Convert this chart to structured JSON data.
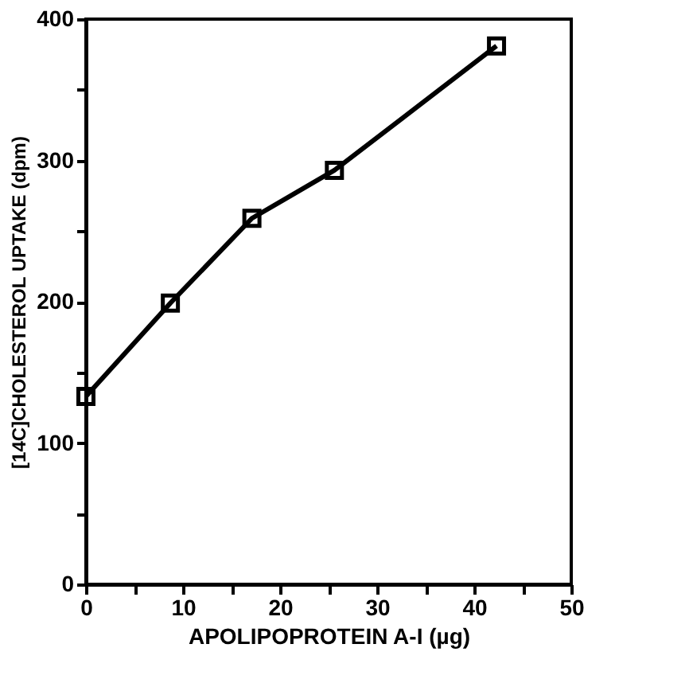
{
  "chart_data": {
    "type": "line",
    "xlabel": "APOLIPOPROTEIN A-I (µg)",
    "ylabel": "[14C]CHOLESTEROL UPTAKE (dpm)",
    "x": [
      0,
      8.7,
      17.1,
      25.6,
      42.3
    ],
    "series": [
      {
        "color": "#000000",
        "values": [
          133,
          199,
          259,
          293,
          381
        ]
      }
    ],
    "xlim": [
      0,
      50
    ],
    "ylim": [
      0,
      400
    ],
    "xticks": [
      0,
      {
        "value": 5,
        "label": null
      },
      10,
      {
        "value": 15,
        "label": null
      },
      20,
      {
        "value": 25,
        "label": null
      },
      30,
      {
        "value": 35,
        "label": null
      },
      40,
      {
        "value": 45,
        "label": null
      },
      50
    ],
    "yticks": [
      0,
      {
        "value": 50,
        "label": null
      },
      100,
      {
        "value": 150,
        "label": null
      },
      200,
      {
        "value": 250,
        "label": null
      },
      300,
      {
        "value": 350,
        "label": null
      },
      400
    ],
    "marker": "square",
    "line_style": "solid",
    "grid": false
  }
}
